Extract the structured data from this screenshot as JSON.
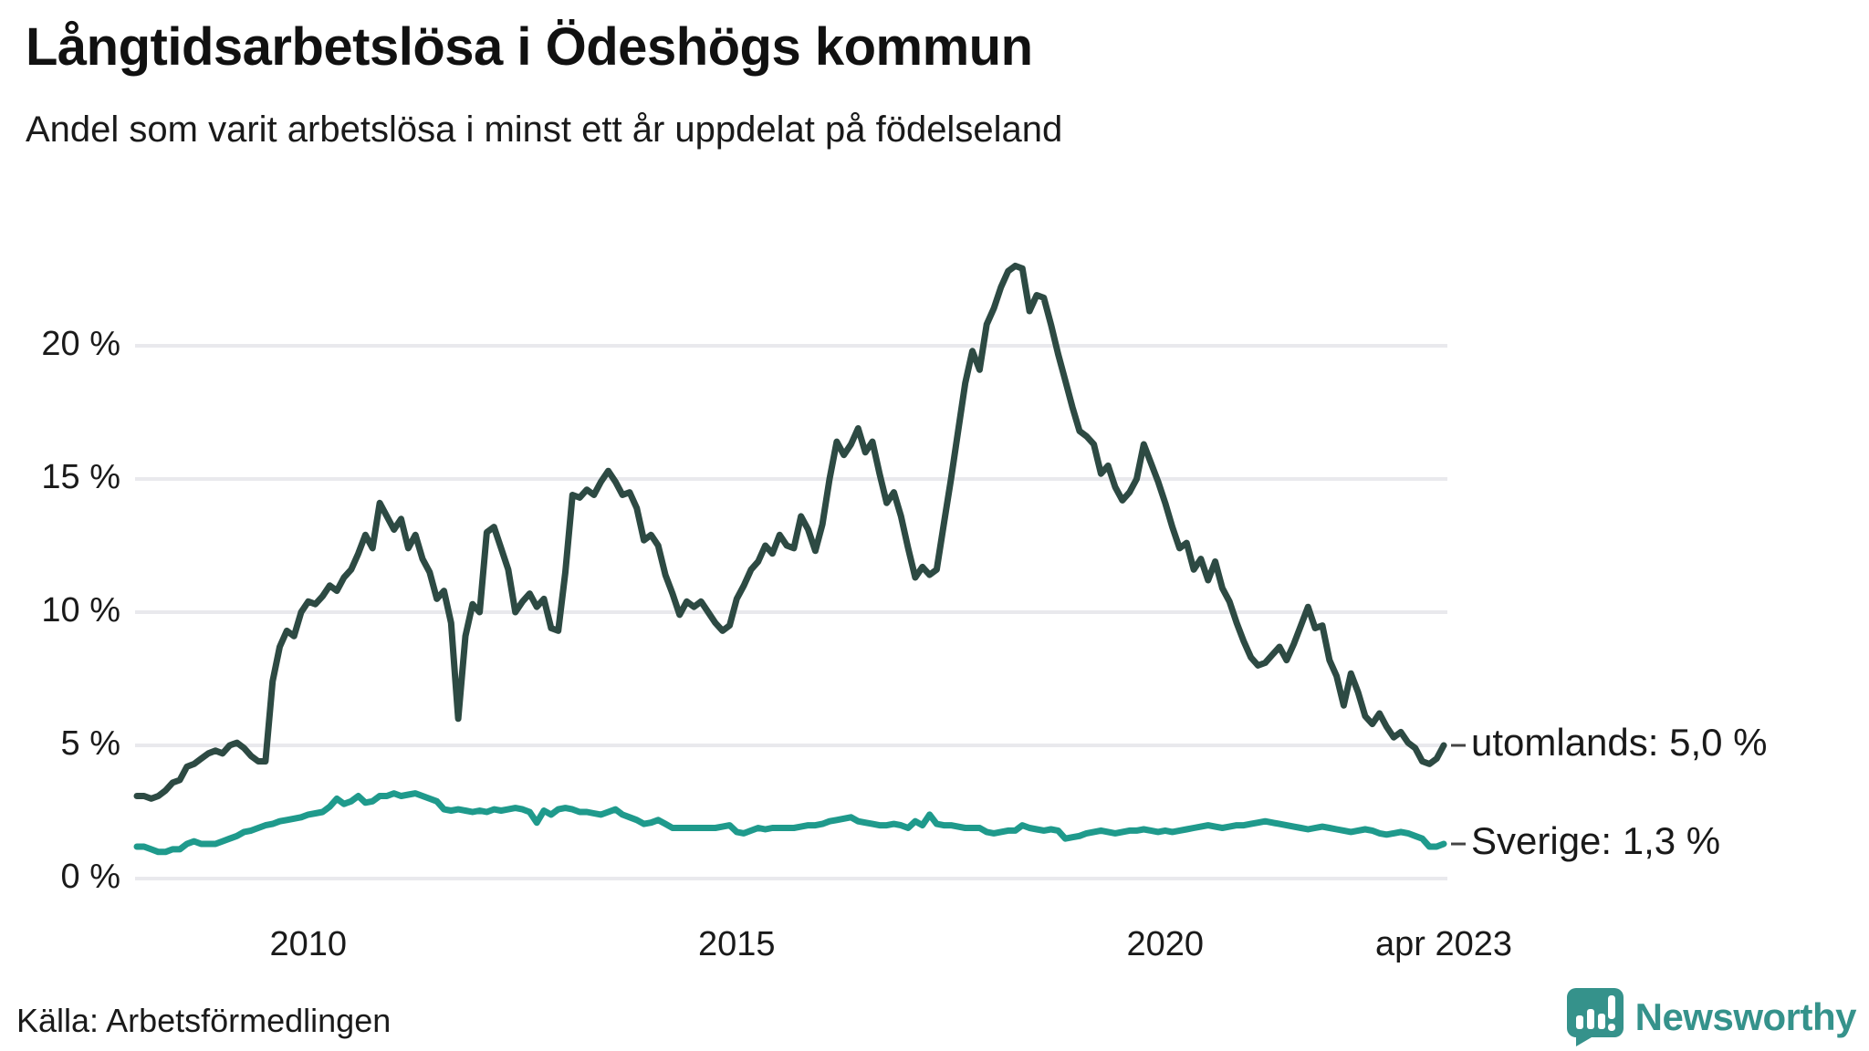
{
  "title": "Långtidsarbetslösa i Ödeshögs kommun",
  "subtitle": "Andel som varit arbetslösa i minst ett år uppdelat på födelseland",
  "source": "Källa: Arbetsförmedlingen",
  "logo": {
    "text": "Newsworthy",
    "color": "#35928b"
  },
  "colors": {
    "utomlands_line": "#2d4a43",
    "sverige_line": "#1f9a8c",
    "gridline": "#e9e9ed",
    "text": "#1a1a1a",
    "end_tick": "#444444"
  },
  "chart_data": {
    "type": "line",
    "title": "Långtidsarbetslösa i Ödeshögs kommun",
    "subtitle": "Andel som varit arbetslösa i minst ett år uppdelat på födelseland",
    "x_start": "2008-01",
    "x_end": "2023-04",
    "x_frequency": "monthly",
    "ylim": [
      0,
      25
    ],
    "grid": "horizontal",
    "y_ticks": [
      {
        "value": 0,
        "label": "0 %"
      },
      {
        "value": 5,
        "label": "5 %"
      },
      {
        "value": 10,
        "label": "10 %"
      },
      {
        "value": 15,
        "label": "15 %"
      },
      {
        "value": 20,
        "label": "20 %"
      }
    ],
    "x_ticks": [
      {
        "months_from_start": 24,
        "label": "2010"
      },
      {
        "months_from_start": 84,
        "label": "2015"
      },
      {
        "months_from_start": 144,
        "label": "2020"
      },
      {
        "months_from_start": 183,
        "label": "apr 2023"
      }
    ],
    "legend_position": "right-end-labels",
    "series": [
      {
        "name": "utomlands",
        "end_label": "utomlands: 5,0 %",
        "end_value": 5.0,
        "color": "#2d4a43",
        "values": [
          3.1,
          3.1,
          3.0,
          3.1,
          3.3,
          3.6,
          3.7,
          4.2,
          4.3,
          4.5,
          4.7,
          4.8,
          4.7,
          5.0,
          5.1,
          4.9,
          4.6,
          4.4,
          4.4,
          7.4,
          8.7,
          9.3,
          9.1,
          10.0,
          10.4,
          10.3,
          10.6,
          11.0,
          10.8,
          11.3,
          11.6,
          12.2,
          12.9,
          12.4,
          14.1,
          13.6,
          13.1,
          13.5,
          12.4,
          12.9,
          12.0,
          11.5,
          10.5,
          10.8,
          9.6,
          6.0,
          9.1,
          10.3,
          10.0,
          13.0,
          13.2,
          12.4,
          11.6,
          10.0,
          10.4,
          10.7,
          10.2,
          10.5,
          9.4,
          9.3,
          11.5,
          14.4,
          14.3,
          14.6,
          14.4,
          14.9,
          15.3,
          14.9,
          14.4,
          14.5,
          13.9,
          12.7,
          12.9,
          12.5,
          11.4,
          10.7,
          9.9,
          10.4,
          10.2,
          10.4,
          10.0,
          9.6,
          9.3,
          9.5,
          10.5,
          11.0,
          11.6,
          11.9,
          12.5,
          12.2,
          12.9,
          12.5,
          12.4,
          13.6,
          13.1,
          12.3,
          13.3,
          15.0,
          16.4,
          15.9,
          16.3,
          16.9,
          16.0,
          16.4,
          15.2,
          14.1,
          14.5,
          13.6,
          12.4,
          11.3,
          11.7,
          11.4,
          11.6,
          13.3,
          15.0,
          16.8,
          18.6,
          19.8,
          19.1,
          20.8,
          21.4,
          22.2,
          22.8,
          23.0,
          22.9,
          21.3,
          21.9,
          21.8,
          20.8,
          19.7,
          18.7,
          17.7,
          16.8,
          16.6,
          16.3,
          15.2,
          15.5,
          14.7,
          14.2,
          14.5,
          15.0,
          16.3,
          15.6,
          14.9,
          14.1,
          13.2,
          12.4,
          12.6,
          11.6,
          12.0,
          11.2,
          11.9,
          10.9,
          10.4,
          9.6,
          8.9,
          8.3,
          8.0,
          8.1,
          8.4,
          8.7,
          8.2,
          8.8,
          9.5,
          10.2,
          9.4,
          9.5,
          8.2,
          7.6,
          6.5,
          7.7,
          7.0,
          6.1,
          5.8,
          6.2,
          5.7,
          5.3,
          5.5,
          5.1,
          4.9,
          4.4,
          4.3,
          4.5,
          5.0
        ]
      },
      {
        "name": "Sverige",
        "end_label": "Sverige: 1,3 %",
        "end_value": 1.3,
        "color": "#1f9a8c",
        "values": [
          1.2,
          1.2,
          1.1,
          1.0,
          1.0,
          1.1,
          1.1,
          1.3,
          1.4,
          1.3,
          1.3,
          1.3,
          1.4,
          1.5,
          1.6,
          1.75,
          1.8,
          1.9,
          2.0,
          2.05,
          2.15,
          2.2,
          2.25,
          2.3,
          2.4,
          2.45,
          2.5,
          2.7,
          3.0,
          2.8,
          2.9,
          3.1,
          2.85,
          2.9,
          3.1,
          3.1,
          3.2,
          3.1,
          3.15,
          3.2,
          3.1,
          3.0,
          2.9,
          2.6,
          2.55,
          2.6,
          2.55,
          2.5,
          2.55,
          2.5,
          2.6,
          2.55,
          2.6,
          2.65,
          2.6,
          2.5,
          2.1,
          2.55,
          2.4,
          2.6,
          2.65,
          2.6,
          2.5,
          2.5,
          2.45,
          2.4,
          2.5,
          2.6,
          2.4,
          2.3,
          2.2,
          2.05,
          2.1,
          2.2,
          2.05,
          1.9,
          1.9,
          1.9,
          1.9,
          1.9,
          1.9,
          1.9,
          1.95,
          2.0,
          1.75,
          1.7,
          1.8,
          1.9,
          1.85,
          1.9,
          1.9,
          1.9,
          1.9,
          1.95,
          2.0,
          2.0,
          2.05,
          2.15,
          2.2,
          2.25,
          2.3,
          2.15,
          2.1,
          2.05,
          2.0,
          2.0,
          2.05,
          2.0,
          1.9,
          2.15,
          2.0,
          2.4,
          2.05,
          2.0,
          2.0,
          1.95,
          1.9,
          1.9,
          1.9,
          1.75,
          1.7,
          1.75,
          1.8,
          1.8,
          2.0,
          1.9,
          1.85,
          1.8,
          1.85,
          1.8,
          1.5,
          1.55,
          1.6,
          1.7,
          1.75,
          1.8,
          1.75,
          1.7,
          1.75,
          1.8,
          1.8,
          1.85,
          1.8,
          1.75,
          1.8,
          1.75,
          1.8,
          1.85,
          1.9,
          1.95,
          2.0,
          1.95,
          1.9,
          1.95,
          2.0,
          2.0,
          2.05,
          2.1,
          2.15,
          2.1,
          2.05,
          2.0,
          1.95,
          1.9,
          1.85,
          1.9,
          1.95,
          1.9,
          1.85,
          1.8,
          1.75,
          1.8,
          1.85,
          1.8,
          1.7,
          1.65,
          1.7,
          1.75,
          1.7,
          1.6,
          1.5,
          1.2,
          1.2,
          1.3
        ]
      }
    ]
  }
}
